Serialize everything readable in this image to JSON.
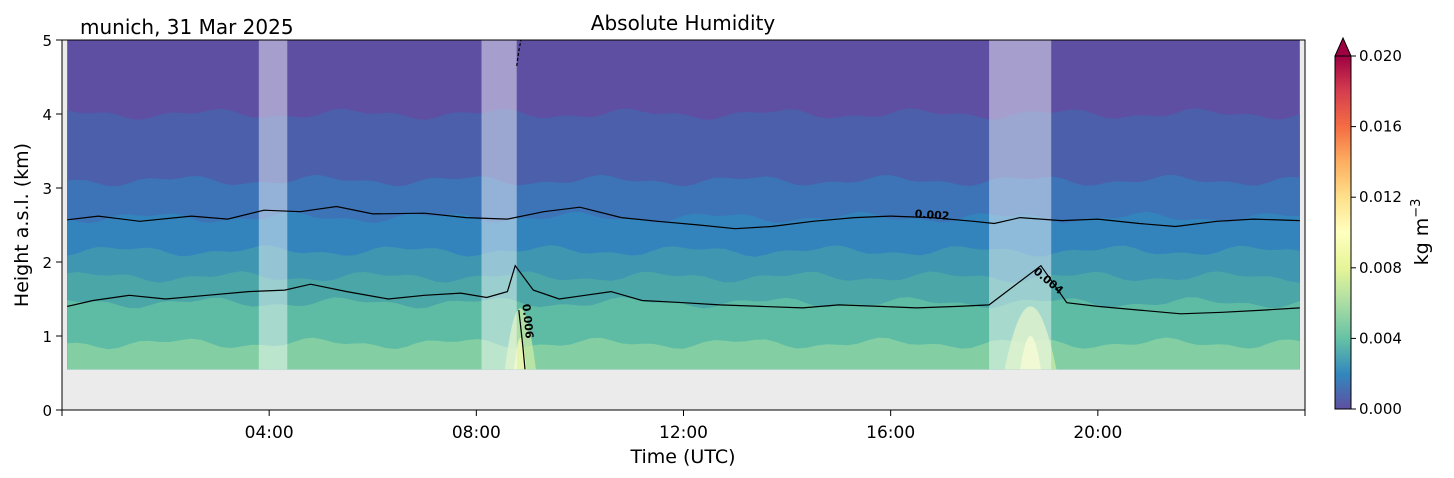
{
  "chart_data": {
    "type": "heatmap",
    "title": "Absolute Humidity",
    "subtitle": "munich, 31 Mar 2025",
    "xlabel": "Time (UTC)",
    "ylabel": "Height a.s.l. (km)",
    "xlim": [
      0,
      24
    ],
    "ylim": [
      0,
      5
    ],
    "x_ticks": [
      {
        "value": 4,
        "label": "04:00"
      },
      {
        "value": 8,
        "label": "08:00"
      },
      {
        "value": 12,
        "label": "12:00"
      },
      {
        "value": 16,
        "label": "16:00"
      },
      {
        "value": 20,
        "label": "20:00"
      }
    ],
    "y_ticks": [
      0,
      1,
      2,
      3,
      4,
      5
    ],
    "colorbar": {
      "label": "kg m",
      "label_exponent": "−3",
      "range": [
        0,
        0.02
      ],
      "extend": "max",
      "ticks": [
        "0.000",
        "0.004",
        "0.008",
        "0.012",
        "0.016",
        "0.020"
      ],
      "colormap": "Spectral_r"
    },
    "data_start_km": 0.55,
    "data_end_km": 5.0,
    "levels": [
      {
        "top_km": 0.9,
        "value": 0.0055,
        "color": "#83cfa3"
      },
      {
        "top_km": 1.45,
        "value": 0.0045,
        "color": "#5fbca4"
      },
      {
        "top_km": 1.8,
        "value": 0.0038,
        "color": "#4aa6a7"
      },
      {
        "top_km": 2.15,
        "value": 0.003,
        "color": "#3e96b1"
      },
      {
        "top_km": 2.6,
        "value": 0.0022,
        "color": "#3384bd"
      },
      {
        "top_km": 3.1,
        "value": 0.0015,
        "color": "#3d74b7"
      },
      {
        "top_km": 4.0,
        "value": 0.0008,
        "color": "#4b5fab"
      },
      {
        "top_km": 5.0,
        "value": 0.0002,
        "color": "#5e4fa2"
      }
    ],
    "contours": [
      {
        "value": 0.002,
        "label": "0.002",
        "points": [
          [
            0.1,
            2.57
          ],
          [
            0.7,
            2.62
          ],
          [
            1.5,
            2.55
          ],
          [
            2.5,
            2.62
          ],
          [
            3.2,
            2.58
          ],
          [
            3.9,
            2.7
          ],
          [
            4.6,
            2.68
          ],
          [
            5.3,
            2.75
          ],
          [
            6.0,
            2.65
          ],
          [
            7.0,
            2.66
          ],
          [
            7.8,
            2.6
          ],
          [
            8.6,
            2.58
          ],
          [
            9.3,
            2.68
          ],
          [
            10.0,
            2.74
          ],
          [
            10.8,
            2.6
          ],
          [
            11.5,
            2.55
          ],
          [
            12.3,
            2.5
          ],
          [
            13.0,
            2.45
          ],
          [
            13.7,
            2.48
          ],
          [
            14.5,
            2.55
          ],
          [
            15.3,
            2.6
          ],
          [
            16.0,
            2.62
          ],
          [
            16.8,
            2.6
          ],
          [
            17.6,
            2.55
          ],
          [
            18.0,
            2.52
          ],
          [
            18.5,
            2.6
          ],
          [
            19.3,
            2.56
          ],
          [
            20.0,
            2.58
          ],
          [
            20.8,
            2.52
          ],
          [
            21.5,
            2.48
          ],
          [
            22.3,
            2.55
          ],
          [
            23.0,
            2.58
          ],
          [
            23.9,
            2.56
          ]
        ]
      },
      {
        "value": 0.004,
        "label": "0.004",
        "points": [
          [
            0.1,
            1.4
          ],
          [
            0.6,
            1.48
          ],
          [
            1.3,
            1.55
          ],
          [
            2.0,
            1.5
          ],
          [
            2.8,
            1.55
          ],
          [
            3.6,
            1.6
          ],
          [
            4.3,
            1.62
          ],
          [
            4.8,
            1.7
          ],
          [
            5.5,
            1.6
          ],
          [
            6.3,
            1.5
          ],
          [
            7.0,
            1.55
          ],
          [
            7.7,
            1.58
          ],
          [
            8.2,
            1.52
          ],
          [
            8.6,
            1.6
          ],
          [
            8.75,
            1.95
          ],
          [
            9.1,
            1.62
          ],
          [
            9.6,
            1.5
          ],
          [
            10.1,
            1.55
          ],
          [
            10.6,
            1.6
          ],
          [
            11.2,
            1.48
          ],
          [
            12.0,
            1.45
          ],
          [
            12.7,
            1.42
          ],
          [
            13.5,
            1.4
          ],
          [
            14.3,
            1.38
          ],
          [
            15.0,
            1.42
          ],
          [
            15.8,
            1.4
          ],
          [
            16.5,
            1.38
          ],
          [
            17.3,
            1.4
          ],
          [
            17.9,
            1.42
          ],
          [
            18.9,
            1.95
          ],
          [
            19.4,
            1.45
          ],
          [
            20.0,
            1.4
          ],
          [
            20.8,
            1.35
          ],
          [
            21.6,
            1.3
          ],
          [
            22.4,
            1.32
          ],
          [
            23.2,
            1.35
          ],
          [
            23.9,
            1.38
          ]
        ]
      },
      {
        "value": 0.006,
        "label": "0.006",
        "points": [
          [
            8.82,
            1.35
          ],
          [
            8.86,
            1.1
          ],
          [
            8.9,
            0.85
          ],
          [
            8.94,
            0.55
          ]
        ]
      },
      {
        "value": 0.0,
        "label": "",
        "points": [
          [
            8.78,
            4.65
          ],
          [
            8.82,
            4.85
          ],
          [
            8.86,
            5.0
          ]
        ]
      }
    ],
    "gap_bands_hours": [
      [
        3.8,
        4.35
      ],
      [
        8.1,
        8.78
      ],
      [
        17.9,
        19.1
      ]
    ]
  }
}
